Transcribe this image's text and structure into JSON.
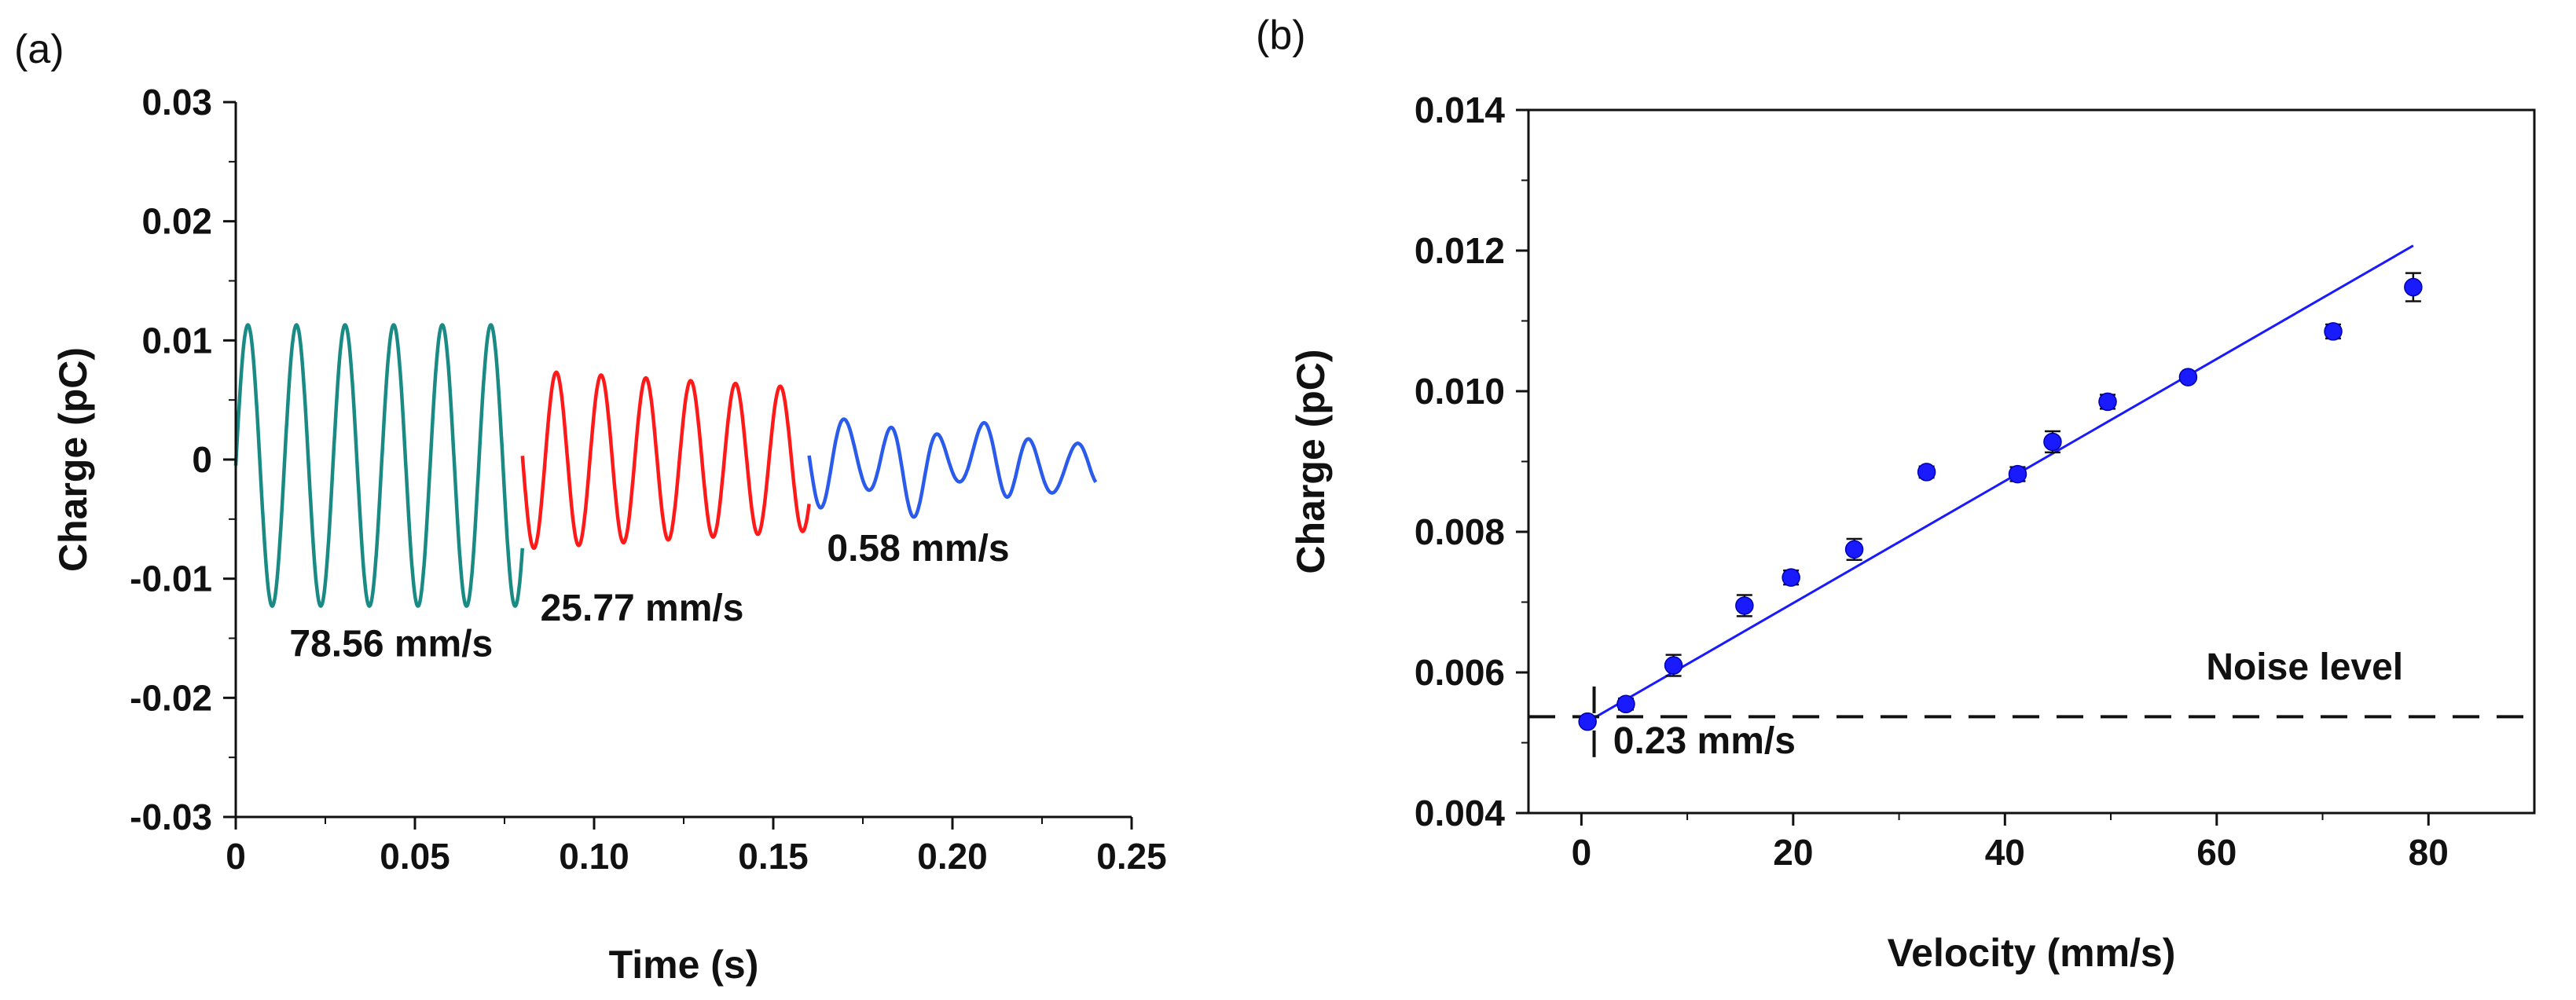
{
  "chart_data": [
    {
      "panel": "(a)",
      "type": "line",
      "xlabel": "Time (s)",
      "ylabel": "Charge (pC)",
      "xlim": [
        0,
        0.25
      ],
      "ylim": [
        -0.03,
        0.03
      ],
      "x_ticks": [
        0,
        0.05,
        0.1,
        0.15,
        0.2,
        0.25
      ],
      "x_tick_labels": [
        "0",
        "0.05",
        "0.10",
        "0.15",
        "0.20",
        "0.25"
      ],
      "y_ticks": [
        -0.03,
        -0.02,
        -0.01,
        0,
        0.01,
        0.02,
        0.03
      ],
      "y_tick_labels": [
        "-0.03",
        "-0.02",
        "-0.01",
        "0",
        "0.01",
        "0.02",
        "0.03"
      ],
      "series": [
        {
          "name": "78.56 mm/s",
          "color": "#1a8a84",
          "t_start": 0.0,
          "t_end": 0.08,
          "amplitude": 0.0118,
          "cycles": 5.9,
          "phase": 0.0
        },
        {
          "name": "25.77 mm/s",
          "color": "#ff1a1a",
          "t_start": 0.08,
          "t_end": 0.16,
          "amplitude": 0.0075,
          "cycles": 6.4,
          "phase": 3.1
        },
        {
          "name": "0.58 mm/s",
          "color": "#2b5bea",
          "t_start": 0.16,
          "t_end": 0.24,
          "amplitude": 0.0045,
          "cycles": 6.2,
          "phase": 3.0
        }
      ],
      "annotations": [
        {
          "text": "78.56 mm/s",
          "x": 0.015,
          "y": -0.0165
        },
        {
          "text": "25.77 mm/s",
          "x": 0.085,
          "y": -0.0135
        },
        {
          "text": "0.58 mm/s",
          "x": 0.165,
          "y": -0.0085
        }
      ]
    },
    {
      "panel": "(b)",
      "type": "scatter",
      "xlabel": "Velocity (mm/s)",
      "ylabel": "Charge (pC)",
      "xlim": [
        -5,
        90
      ],
      "ylim": [
        0.004,
        0.014
      ],
      "x_ticks": [
        0,
        20,
        40,
        60,
        80
      ],
      "x_tick_labels": [
        "0",
        "20",
        "40",
        "60",
        "80"
      ],
      "y_ticks": [
        0.004,
        0.006,
        0.008,
        0.01,
        0.012,
        0.014
      ],
      "y_tick_labels": [
        "0.004",
        "0.006",
        "0.008",
        "0.010",
        "0.012",
        "0.014"
      ],
      "points": [
        {
          "x": 0.58,
          "y": 0.0053,
          "err": 5e-05
        },
        {
          "x": 4.2,
          "y": 0.00555,
          "err": 8e-05
        },
        {
          "x": 8.7,
          "y": 0.0061,
          "err": 0.00015
        },
        {
          "x": 15.4,
          "y": 0.00695,
          "err": 0.00015
        },
        {
          "x": 19.8,
          "y": 0.00735,
          "err": 0.0001
        },
        {
          "x": 25.77,
          "y": 0.00775,
          "err": 0.00015
        },
        {
          "x": 32.6,
          "y": 0.00885,
          "err": 8e-05
        },
        {
          "x": 41.2,
          "y": 0.00882,
          "err": 0.0001
        },
        {
          "x": 44.5,
          "y": 0.00928,
          "err": 0.00015
        },
        {
          "x": 49.7,
          "y": 0.00985,
          "err": 0.0001
        },
        {
          "x": 57.3,
          "y": 0.0102,
          "err": 5e-05
        },
        {
          "x": 71.0,
          "y": 0.01085,
          "err": 0.0001
        },
        {
          "x": 78.56,
          "y": 0.01148,
          "err": 0.0002
        }
      ],
      "point_color": "#1a1aff",
      "fit_line": {
        "x0": 0.58,
        "y0": 0.0053,
        "x1": 78.56,
        "y1": 0.01207,
        "color": "#1a1aff"
      },
      "noise_level": {
        "y": 0.00537,
        "label": "Noise level"
      },
      "threshold": {
        "x": 1.2,
        "label": "0.23 mm/s"
      }
    }
  ]
}
